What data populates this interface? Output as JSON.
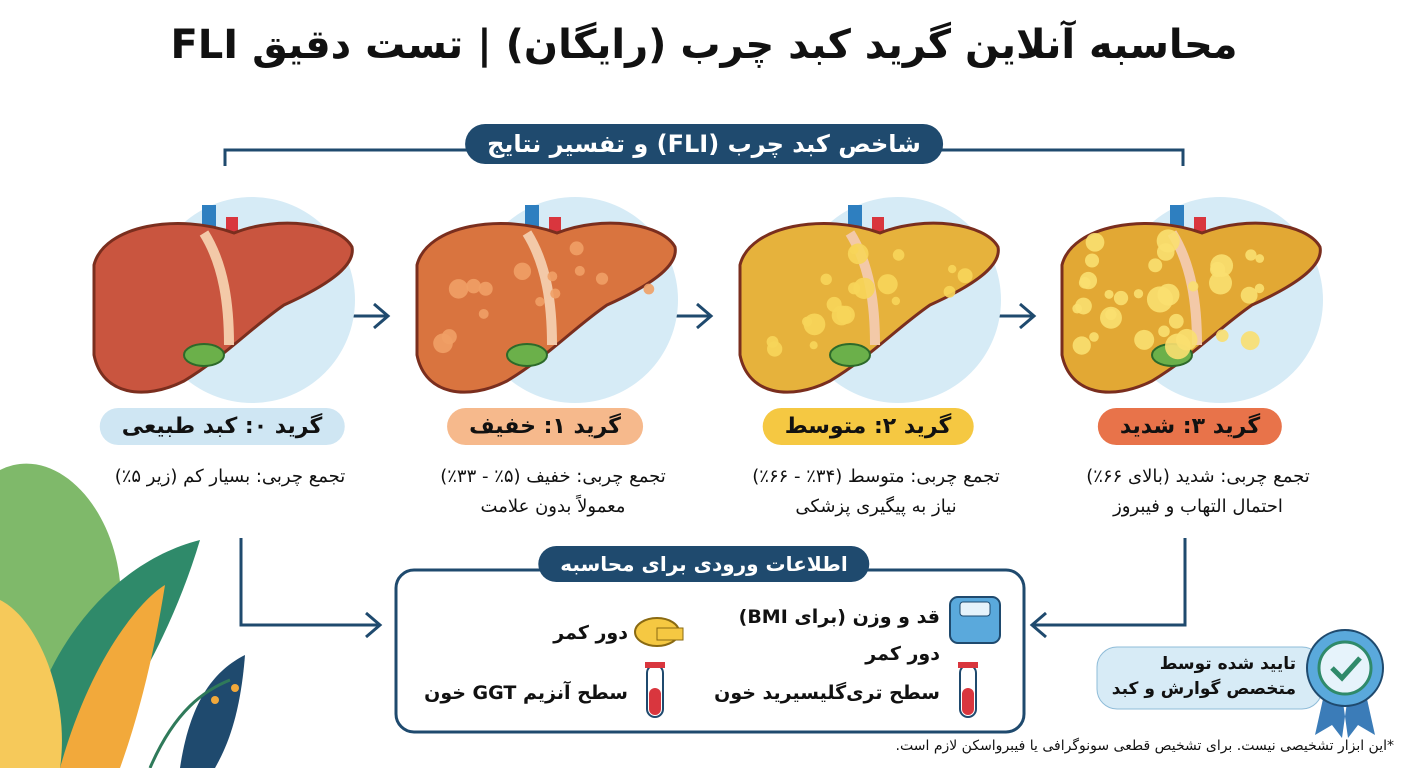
{
  "header": {
    "title": "محاسبه آنلاین گرید کبد چرب (رایگان) | تست دقیق FLI"
  },
  "section": {
    "title": "شاخص کبد چرب (FLI) و تفسیر نتایج"
  },
  "grades": [
    {
      "label": "گرید ۰: کبد طبیعی",
      "lines": [
        "تجمع چربی: بسیار کم (زیر ۵٪)"
      ]
    },
    {
      "label": "گرید ۱: خفیف",
      "lines": [
        "تجمع چربی: خفیف (۵٪ - ۳۳٪)",
        "معمولاً بدون علامت"
      ]
    },
    {
      "label": "گرید ۲: متوسط",
      "lines": [
        "تجمع چربی: متوسط (۳۴٪ - ۶۶٪)",
        "نیاز به پیگیری پزشکی"
      ]
    },
    {
      "label": "گرید ۳: شدید",
      "lines": [
        "تجمع چربی: شدید (بالای ۶۶٪)",
        "احتمال التهاب و فیبروز"
      ]
    }
  ],
  "inputs": {
    "title": "اطلاعات ورودی برای محاسبه",
    "items": [
      "قد و وزن (برای BMI)",
      "دور کمر",
      "سطح تری‌گلیسیرید خون",
      "دور کمر",
      "سطح آنزیم GGT خون"
    ]
  },
  "badge": {
    "lines": [
      "تایید شده توسط",
      "متخصص گوارش و کبد"
    ]
  },
  "footnote": "*این ابزار تشخیصی نیست. برای تشخیص قطعی سونوگرافی یا فیبرواسکن لازم است."
}
